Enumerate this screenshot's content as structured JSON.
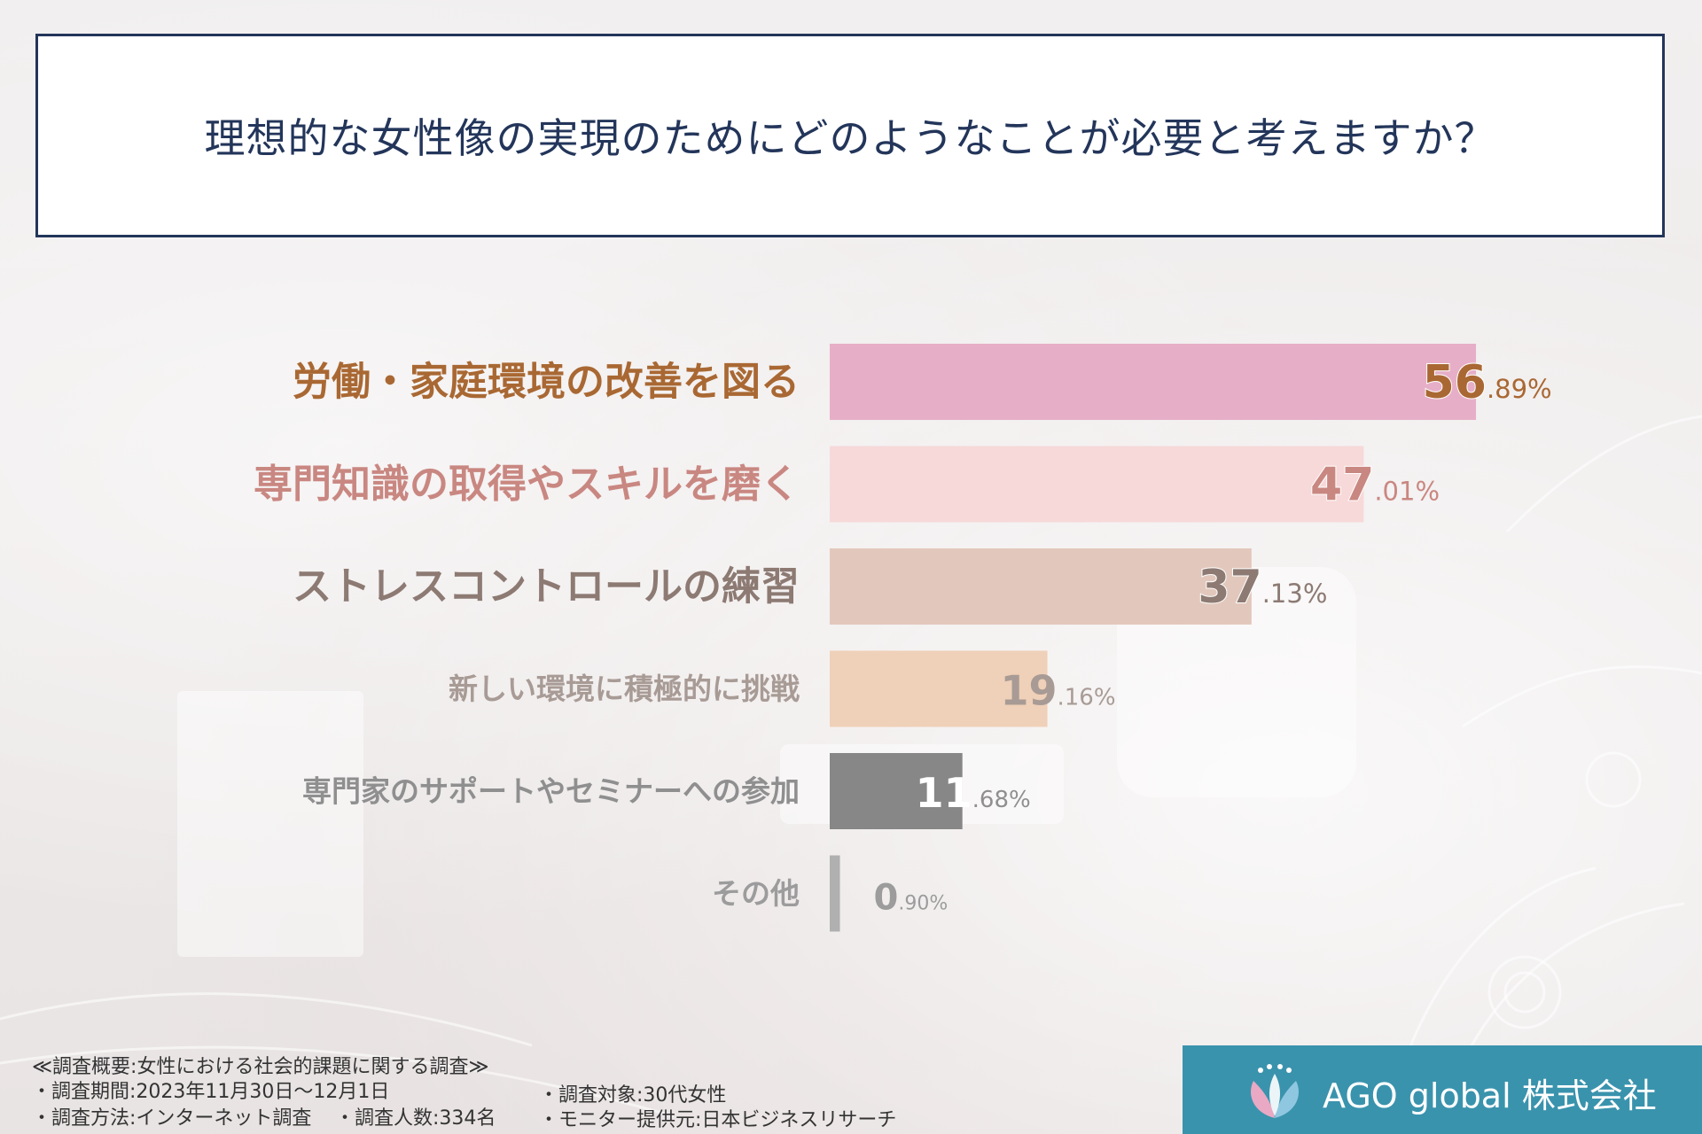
{
  "title": "理想的な女性像の実現のためにどのようなことが必要と考えますか？",
  "chart_data": {
    "type": "bar",
    "orientation": "horizontal",
    "categories": [
      "労働・家庭環境の改善を図る",
      "専門知識の取得やスキルを磨く",
      "ストレスコントロールの練習",
      "新しい環境に積極的に挑戦",
      "専門家のサポートやセミナーへの参加",
      "その他"
    ],
    "values": [
      56.89,
      47.01,
      37.13,
      19.16,
      11.68,
      0.9
    ],
    "value_labels": [
      {
        "int": "56",
        "dec": ".89%"
      },
      {
        "int": "47",
        "dec": ".01%"
      },
      {
        "int": "37",
        "dec": ".13%"
      },
      {
        "int": "19",
        "dec": ".16%"
      },
      {
        "int": "11",
        "dec": ".68%"
      },
      {
        "int": "0",
        "dec": ".90%"
      }
    ],
    "bar_colors": [
      "#e6afc7",
      "#f7d9d9",
      "#e2c8bc",
      "#efd0b8",
      "#878787",
      "#b0b0b0"
    ],
    "label_colors": [
      "#a96833",
      "#c98781",
      "#8c7a73",
      "#a89b95",
      "#8f8f8f",
      "#9c9c9c"
    ],
    "value_int_colors": [
      "#a96833",
      "#c98781",
      "#8c7a73",
      "#a89b95",
      "#ffffff",
      "#9c9c9c"
    ],
    "xlim": [
      0,
      100
    ]
  },
  "footer": {
    "line1": "≪調査概要:女性における社会的課題に関する調査≫",
    "period": "・調査期間:2023年11月30日〜12月1日",
    "target": "・調査対象:30代女性",
    "method": "・調査方法:インターネット調査",
    "count": "・調査人数:334名",
    "monitor": "・モニター提供元:日本ビジネスリサーチ"
  },
  "company": {
    "name": "AGO global 株式会社",
    "logo_icon": "ago-global-logo",
    "brand_color": "#3a93ad"
  }
}
